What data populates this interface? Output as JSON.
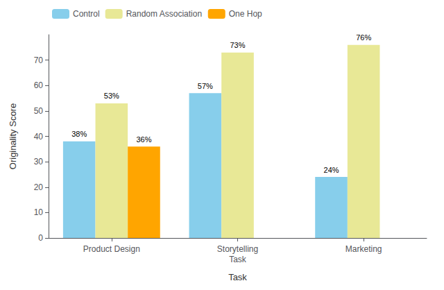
{
  "chart_data": {
    "type": "bar",
    "categories": [
      "Product Design",
      "Storytelling\nTask",
      "Marketing"
    ],
    "series": [
      {
        "name": "Control",
        "color": "#87CEEB",
        "values": [
          38,
          57,
          24
        ],
        "value_labels": [
          "38%",
          "57%",
          "24%"
        ]
      },
      {
        "name": "Random Association",
        "color": "#E8E896",
        "values": [
          53,
          73,
          76
        ],
        "value_labels": [
          "53%",
          "73%",
          "76%"
        ]
      },
      {
        "name": "One Hop",
        "color": "#FFA500",
        "values": [
          36,
          null,
          null
        ],
        "value_labels": [
          "36%",
          null,
          null
        ]
      }
    ],
    "xlabel": "Task",
    "ylabel": "Originality Score",
    "ylim": [
      0,
      80
    ],
    "yticks": [
      0,
      10,
      20,
      30,
      40,
      50,
      60,
      70
    ],
    "grid": false,
    "legend": "upper left",
    "data_labels": true
  }
}
